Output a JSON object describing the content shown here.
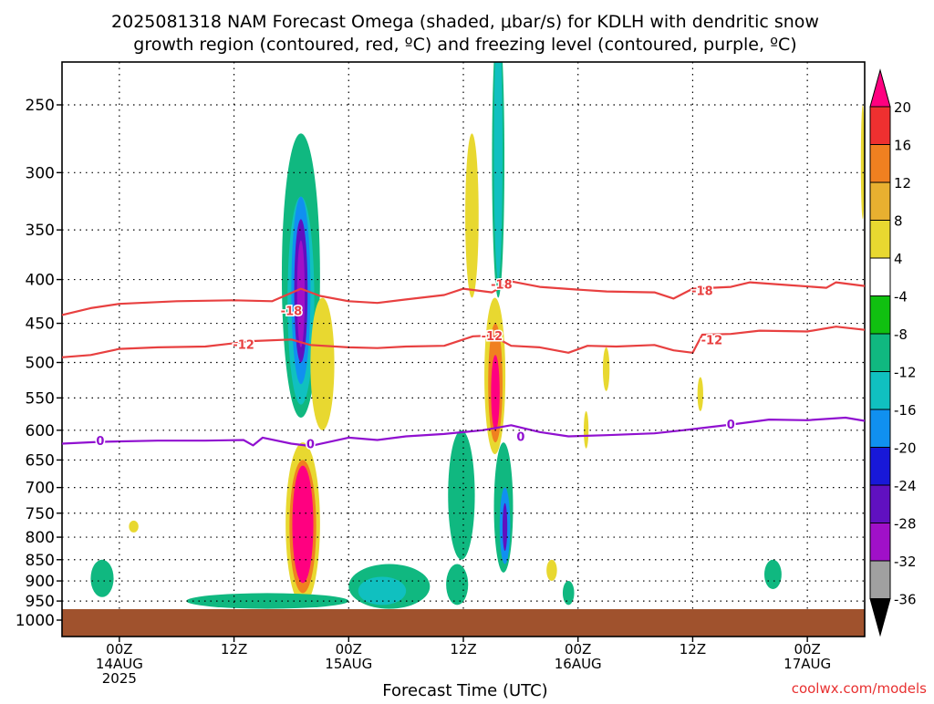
{
  "chart_data": {
    "type": "heatmap",
    "title_lines": [
      "2025081318 NAM Forecast Omega (shaded, μbar/s) for KDLH with dendritic snow",
      "growth region (contoured, red, ºC) and freezing level (contoured, purple, ºC)"
    ],
    "xlabel": "Forecast Time (UTC)",
    "ylabel": "",
    "credit": "coolwx.com/models",
    "y_axis": {
      "scale": "log",
      "ylim": [
        1000,
        200
      ],
      "ticks": [
        250,
        300,
        350,
        400,
        450,
        500,
        550,
        600,
        650,
        700,
        750,
        800,
        850,
        900,
        950,
        1000
      ],
      "tick_labels": [
        "250",
        "300",
        "350",
        "400",
        "450",
        "500",
        "550",
        "600",
        "650",
        "700",
        "750",
        "800",
        "850",
        "900",
        "950",
        "1000"
      ]
    },
    "x_axis": {
      "unit": "hours from 2025-08-13 18Z",
      "xlim": [
        0,
        84
      ],
      "ticks": [
        {
          "hour": 6,
          "lines": [
            "00Z",
            "14AUG",
            "2025"
          ]
        },
        {
          "hour": 18,
          "lines": [
            "12Z"
          ]
        },
        {
          "hour": 30,
          "lines": [
            "00Z",
            "15AUG"
          ]
        },
        {
          "hour": 42,
          "lines": [
            "12Z"
          ]
        },
        {
          "hour": 54,
          "lines": [
            "00Z",
            "16AUG"
          ]
        },
        {
          "hour": 66,
          "lines": [
            "12Z"
          ]
        },
        {
          "hour": 78,
          "lines": [
            "00Z",
            "17AUG"
          ]
        }
      ]
    },
    "grid": true,
    "colorbar": {
      "labels": [
        "20",
        "16",
        "12",
        "8",
        "4",
        "-4",
        "-8",
        "-12",
        "-16",
        "-20",
        "-24",
        "-28",
        "-32",
        "-36"
      ],
      "colors": [
        "#ff0080",
        "#ee3030",
        "#f08020",
        "#e8b030",
        "#e8d830",
        "#ffffff",
        "#10c010",
        "#10b880",
        "#10c0c0",
        "#1090f0",
        "#1818d8",
        "#6010c0",
        "#a010c8",
        "#a0a0a0",
        "#000000"
      ]
    },
    "contours": [
      {
        "label": "-18",
        "color": "#e84040",
        "points": [
          [
            0,
            440
          ],
          [
            3,
            432
          ],
          [
            6,
            427
          ],
          [
            12,
            424
          ],
          [
            18,
            423
          ],
          [
            22,
            424
          ],
          [
            25,
            410
          ],
          [
            27,
            418
          ],
          [
            30,
            424
          ],
          [
            33,
            426
          ],
          [
            36,
            422
          ],
          [
            40,
            417
          ],
          [
            42,
            410
          ],
          [
            45,
            414
          ],
          [
            47,
            402
          ],
          [
            50,
            408
          ],
          [
            54,
            411
          ],
          [
            57,
            413
          ],
          [
            62,
            414
          ],
          [
            64,
            421
          ],
          [
            66,
            410
          ],
          [
            70,
            408
          ],
          [
            72,
            403
          ],
          [
            76,
            406
          ],
          [
            80,
            409
          ],
          [
            81,
            403
          ],
          [
            84,
            407
          ]
        ],
        "label_positions": [
          [
            24,
            435
          ],
          [
            46,
            405
          ],
          [
            67,
            412
          ]
        ]
      },
      {
        "label": "-12",
        "color": "#e84040",
        "points": [
          [
            0,
            493
          ],
          [
            3,
            490
          ],
          [
            6,
            482
          ],
          [
            10,
            480
          ],
          [
            15,
            479
          ],
          [
            20,
            472
          ],
          [
            24,
            470
          ],
          [
            26,
            477
          ],
          [
            30,
            480
          ],
          [
            33,
            481
          ],
          [
            36,
            479
          ],
          [
            40,
            478
          ],
          [
            43,
            466
          ],
          [
            45,
            465
          ],
          [
            47,
            478
          ],
          [
            50,
            480
          ],
          [
            53,
            487
          ],
          [
            55,
            478
          ],
          [
            58,
            479
          ],
          [
            62,
            477
          ],
          [
            64,
            484
          ],
          [
            66,
            487
          ],
          [
            67,
            464
          ],
          [
            70,
            463
          ],
          [
            73,
            459
          ],
          [
            78,
            460
          ],
          [
            81,
            454
          ],
          [
            84,
            458
          ]
        ],
        "label_positions": [
          [
            19,
            476
          ],
          [
            45,
            465
          ],
          [
            68,
            470
          ]
        ]
      },
      {
        "label": "0",
        "color": "#9010d0",
        "points": [
          [
            0,
            622
          ],
          [
            4,
            619
          ],
          [
            10,
            617
          ],
          [
            15,
            617
          ],
          [
            19,
            616
          ],
          [
            20,
            625
          ],
          [
            21,
            612
          ],
          [
            24,
            622
          ],
          [
            26,
            626
          ],
          [
            30,
            612
          ],
          [
            33,
            616
          ],
          [
            36,
            610
          ],
          [
            40,
            606
          ],
          [
            44,
            600
          ],
          [
            47,
            592
          ],
          [
            50,
            603
          ],
          [
            53,
            610
          ],
          [
            57,
            608
          ],
          [
            62,
            605
          ],
          [
            65,
            600
          ],
          [
            70,
            591
          ],
          [
            74,
            583
          ],
          [
            78,
            584
          ],
          [
            82,
            580
          ],
          [
            84,
            585
          ]
        ],
        "label_positions": [
          [
            4,
            617
          ],
          [
            26,
            622
          ],
          [
            48,
            610
          ],
          [
            70,
            590
          ]
        ]
      }
    ],
    "cells": [
      {
        "x": [
          23,
          27
        ],
        "p": [
          270,
          580
        ],
        "v": -8
      },
      {
        "x": [
          23.6,
          26.4
        ],
        "p": [
          320,
          560
        ],
        "v": -12
      },
      {
        "x": [
          24,
          26
        ],
        "p": [
          320,
          530
        ],
        "v": -16
      },
      {
        "x": [
          24.3,
          25.7
        ],
        "p": [
          340,
          500
        ],
        "v": -24
      },
      {
        "x": [
          24.6,
          25.4
        ],
        "p": [
          360,
          480
        ],
        "v": -28
      },
      {
        "x": [
          26,
          28.5
        ],
        "p": [
          420,
          600
        ],
        "v": 6
      },
      {
        "x": [
          23.4,
          27
        ],
        "p": [
          620,
          960
        ],
        "v": 6
      },
      {
        "x": [
          23.8,
          26.6
        ],
        "p": [
          650,
          930
        ],
        "v": 12
      },
      {
        "x": [
          24.1,
          26.3
        ],
        "p": [
          660,
          905
        ],
        "v": 20
      },
      {
        "x": [
          42.2,
          43.6
        ],
        "p": [
          270,
          420
        ],
        "v": 6
      },
      {
        "x": [
          45,
          46.3
        ],
        "p": [
          200,
          420
        ],
        "v": -8
      },
      {
        "x": [
          45.2,
          46.1
        ],
        "p": [
          200,
          400
        ],
        "v": -12
      },
      {
        "x": [
          44.2,
          46.4
        ],
        "p": [
          420,
          640
        ],
        "v": 6
      },
      {
        "x": [
          44.6,
          46.1
        ],
        "p": [
          450,
          620
        ],
        "v": 12
      },
      {
        "x": [
          44.9,
          45.8
        ],
        "p": [
          490,
          600
        ],
        "v": 20
      },
      {
        "x": [
          40.4,
          43.2
        ],
        "p": [
          600,
          850
        ],
        "v": -8
      },
      {
        "x": [
          45.2,
          47.2
        ],
        "p": [
          620,
          880
        ],
        "v": -8
      },
      {
        "x": [
          45.8,
          46.9
        ],
        "p": [
          700,
          860
        ],
        "v": -16
      },
      {
        "x": [
          46.1,
          46.6
        ],
        "p": [
          730,
          830
        ],
        "v": -24
      },
      {
        "x": [
          3,
          5.4
        ],
        "p": [
          850,
          940
        ],
        "v": -8
      },
      {
        "x": [
          13,
          30
        ],
        "p": [
          930,
          970
        ],
        "v": -8
      },
      {
        "x": [
          30,
          38.5
        ],
        "p": [
          860,
          970
        ],
        "v": -8
      },
      {
        "x": [
          31,
          36
        ],
        "p": [
          890,
          960
        ],
        "v": -12
      },
      {
        "x": [
          40.2,
          42.5
        ],
        "p": [
          860,
          960
        ],
        "v": -8
      },
      {
        "x": [
          50.7,
          51.8
        ],
        "p": [
          850,
          900
        ],
        "v": 6
      },
      {
        "x": [
          56.6,
          57.3
        ],
        "p": [
          480,
          540
        ],
        "v": 6
      },
      {
        "x": [
          54.6,
          55.1
        ],
        "p": [
          570,
          630
        ],
        "v": 6
      },
      {
        "x": [
          66.5,
          67.1
        ],
        "p": [
          520,
          570
        ],
        "v": 6
      },
      {
        "x": [
          73.5,
          75.3
        ],
        "p": [
          850,
          920
        ],
        "v": -8
      },
      {
        "x": [
          7,
          8
        ],
        "p": [
          765,
          790
        ],
        "v": 6
      },
      {
        "x": [
          52.4,
          53.6
        ],
        "p": [
          900,
          960
        ],
        "v": -8
      },
      {
        "x": [
          83.6,
          84
        ],
        "p": [
          250,
          340
        ],
        "v": 6
      }
    ]
  }
}
